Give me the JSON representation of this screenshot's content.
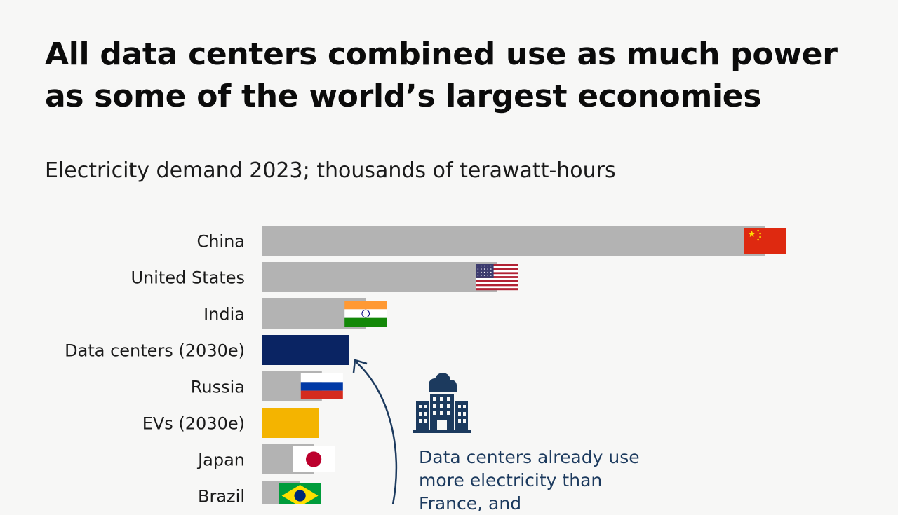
{
  "header": {
    "title": "All data centers combined use as much power as some of the world’s largest economies",
    "subtitle": "Electricity demand 2023; thousands of terawatt-hours"
  },
  "chart_data": {
    "type": "bar",
    "orientation": "horizontal",
    "title": "All data centers combined use as much power as some of the world’s largest economies",
    "subtitle": "Electricity demand 2023; thousands of terawatt-hours",
    "categories": [
      "China",
      "United States",
      "India",
      "Data centers (2030e)",
      "Russia",
      "EVs (2030e)",
      "Japan",
      "Brazil"
    ],
    "values": [
      9.2,
      4.3,
      1.9,
      1.6,
      1.1,
      1.05,
      0.95,
      0.7
    ],
    "bar_colors": [
      "#b3b3b3",
      "#b3b3b3",
      "#b3b3b3",
      "#0a2463",
      "#b3b3b3",
      "#f4b400",
      "#b3b3b3",
      "#b3b3b3"
    ],
    "flags": [
      "china-flag",
      "us-flag",
      "india-flag",
      null,
      "russia-flag",
      null,
      "japan-flag",
      "brazil-flag"
    ],
    "xlim": [
      0,
      10
    ],
    "grid": false,
    "legend": "none"
  },
  "callout": {
    "icon": "data-center-cloud-icon",
    "text": "Data centers already use more electricity than France, and"
  },
  "colors": {
    "accent_navy": "#0a2463",
    "accent_yellow": "#f4b400",
    "bar_grey": "#b3b3b3",
    "callout_text": "#1c3a5e"
  }
}
